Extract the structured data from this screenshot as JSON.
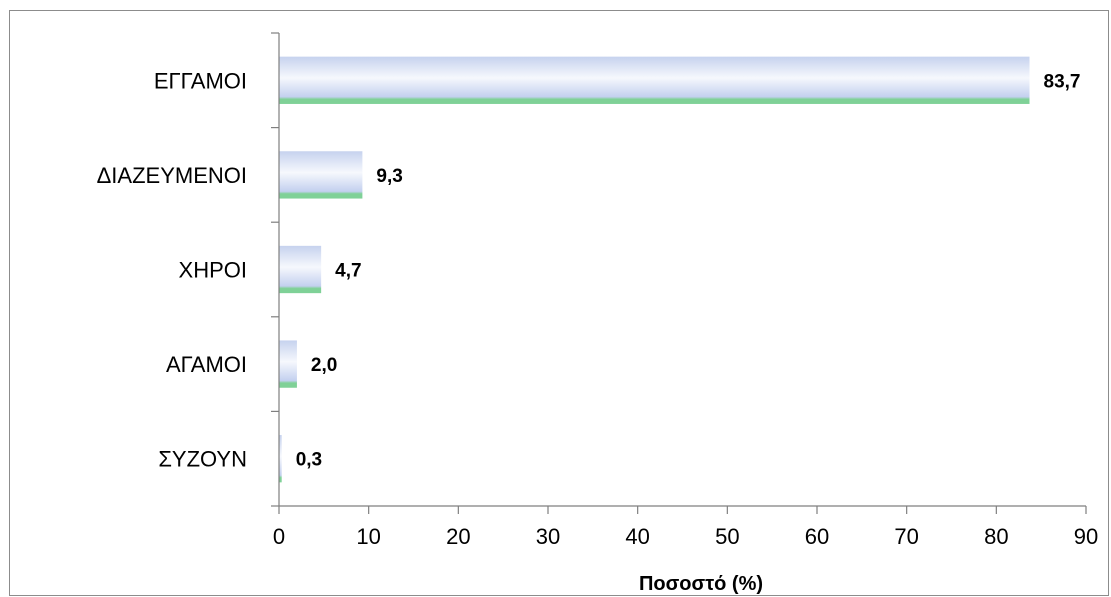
{
  "chart_data": {
    "type": "bar",
    "orientation": "horizontal",
    "categories": [
      "ΕΓΓΑΜΟΙ",
      "ΔΙΑΖΕΥΜΕΝΟΙ",
      "ΧΗΡΟΙ",
      "ΑΓΑΜΟΙ",
      "ΣΥΖΟΥΝ"
    ],
    "values": [
      83.7,
      9.3,
      4.7,
      2.0,
      0.3
    ],
    "data_labels": [
      "83,7",
      "9,3",
      "4,7",
      "2,0",
      "0,3"
    ],
    "xlabel": "Ποσοστό (%)",
    "xlim": [
      0,
      90
    ],
    "xticks": [
      0,
      10,
      20,
      30,
      40,
      50,
      60,
      70,
      80,
      90
    ],
    "xtick_labels": [
      "0",
      "10",
      "20",
      "30",
      "40",
      "50",
      "60",
      "70",
      "80",
      "90"
    ],
    "grid": false,
    "legend": "none",
    "colors": {
      "bar_light": "#f4f7fd",
      "bar_mid": "#c3d0ef",
      "bar_bottom": "#7fd197",
      "axis": "#7f7f7f"
    }
  }
}
